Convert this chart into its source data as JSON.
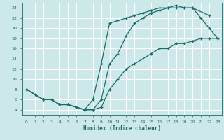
{
  "title": "",
  "xlabel": "Humidex (Indice chaleur)",
  "background_color": "#cce8e8",
  "grid_color": "#ffffff",
  "line_color": "#1a6b6b",
  "marker": "+",
  "xlim": [
    -0.5,
    23.5
  ],
  "ylim": [
    3.0,
    25.0
  ],
  "xticks": [
    0,
    1,
    2,
    3,
    4,
    5,
    6,
    7,
    8,
    9,
    10,
    11,
    12,
    13,
    14,
    15,
    16,
    17,
    18,
    19,
    20,
    21,
    22,
    23
  ],
  "yticks": [
    4,
    6,
    8,
    10,
    12,
    14,
    16,
    18,
    20,
    22,
    24
  ],
  "curve1_x": [
    0,
    1,
    2,
    3,
    4,
    5,
    6,
    7,
    8,
    9,
    10,
    11,
    12,
    13,
    14,
    15,
    16,
    17,
    18,
    19,
    20,
    22
  ],
  "curve1_y": [
    8,
    7,
    6,
    6,
    5,
    5,
    4.5,
    4,
    4,
    6,
    13,
    15,
    18.5,
    21,
    22,
    23,
    23.5,
    24,
    24,
    24,
    24,
    22.5
  ],
  "curve2_x": [
    0,
    2,
    3,
    4,
    5,
    6,
    7,
    8,
    9,
    10,
    11,
    12,
    13,
    14,
    15,
    16,
    17,
    18,
    19,
    20,
    21,
    22,
    23
  ],
  "curve2_y": [
    8,
    6,
    6,
    5,
    5,
    4.5,
    4,
    6,
    13,
    21,
    21.5,
    22,
    22.5,
    23,
    23.5,
    24,
    24,
    24.5,
    24,
    24,
    22,
    20,
    18
  ],
  "curve3_x": [
    0,
    2,
    3,
    4,
    5,
    6,
    7,
    8,
    9,
    10,
    11,
    12,
    13,
    14,
    15,
    16,
    17,
    18,
    19,
    20,
    21,
    22,
    23
  ],
  "curve3_y": [
    8,
    6,
    6,
    5,
    5,
    4.5,
    4,
    4,
    4.5,
    8,
    10,
    12,
    13,
    14,
    15,
    16,
    16,
    17,
    17,
    17.5,
    18,
    18,
    18
  ]
}
